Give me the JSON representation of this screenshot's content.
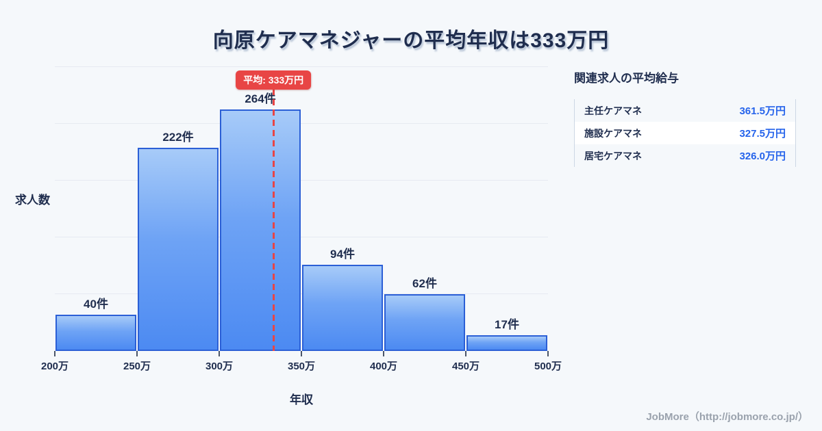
{
  "title": "向原ケアマネジャーの平均年収は333万円",
  "chart_data": {
    "type": "bar",
    "title": "向原ケアマネジャーの平均年収は333万円",
    "xlabel": "年収",
    "ylabel": "求人数",
    "bins": [
      200,
      250,
      300,
      350,
      400,
      450,
      500
    ],
    "x_tick_labels": [
      "200万",
      "250万",
      "300万",
      "350万",
      "400万",
      "450万",
      "500万"
    ],
    "values": [
      40,
      222,
      264,
      94,
      62,
      17
    ],
    "value_labels": [
      "40件",
      "222件",
      "264件",
      "94件",
      "62件",
      "17件"
    ],
    "xlim": [
      200,
      500
    ],
    "ylim": [
      0,
      311
    ],
    "grid": true,
    "legend": false,
    "average_line": {
      "x": 333,
      "label": "平均: 333万円",
      "style": "dashed"
    }
  },
  "related_jobs": {
    "heading": "関連求人の平均給与",
    "rows": [
      {
        "label": "主任ケアマネ",
        "value": "361.5万円"
      },
      {
        "label": "施設ケアマネ",
        "value": "327.5万円"
      },
      {
        "label": "居宅ケアマネ",
        "value": "326.0万円"
      }
    ]
  },
  "footer": {
    "credit": "JobMore（http://jobmore.co.jp/）"
  },
  "colors": {
    "background": "#f5f8fb",
    "text_dark": "#1f2d4e",
    "bar_fill_top": "#a7cbf8",
    "bar_fill_bottom": "#4c8af2",
    "bar_border": "#2b5fd6",
    "average_red": "#e84545",
    "value_blue": "#2563eb",
    "grid_line": "#e6eaf1",
    "table_border": "#ccd6e4",
    "footer_gray": "#9aa2ad"
  }
}
